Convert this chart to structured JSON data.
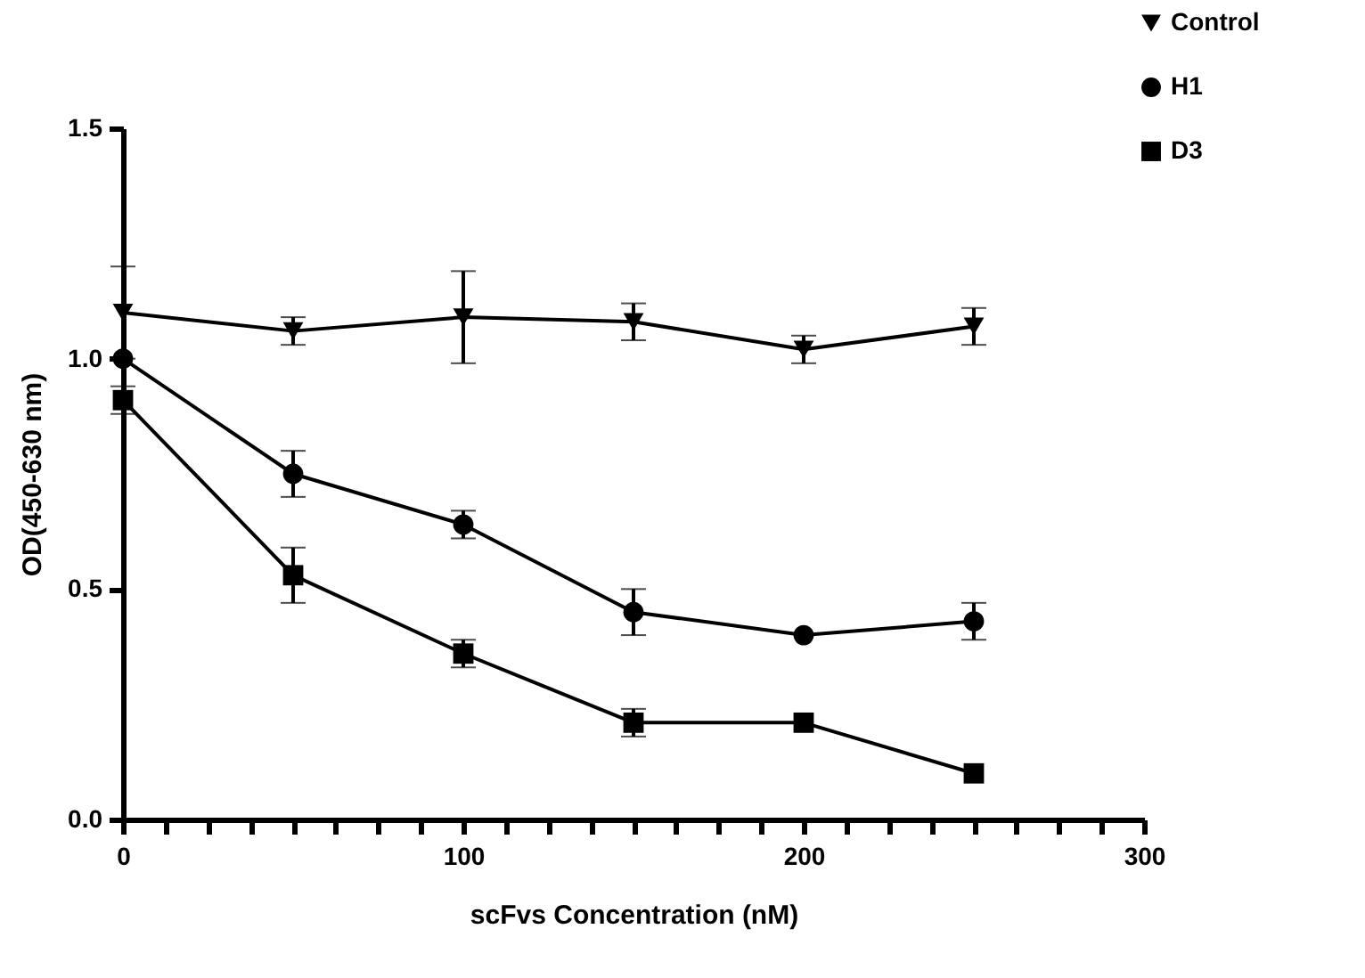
{
  "chart_data": {
    "type": "line",
    "xlabel": "scFvs Concentration (nM)",
    "ylabel": "OD(450-630 nm)",
    "x": [
      0,
      50,
      100,
      150,
      200,
      250
    ],
    "series": [
      {
        "name": "Control",
        "color": "#000000",
        "marker": "triangle-down",
        "values": [
          1.1,
          1.06,
          1.09,
          1.08,
          1.02,
          1.07
        ],
        "errors": [
          0.1,
          0.03,
          0.1,
          0.04,
          0.03,
          0.04
        ]
      },
      {
        "name": "H1",
        "color": "#000000",
        "marker": "circle",
        "values": [
          1.0,
          0.75,
          0.64,
          0.45,
          0.4,
          0.43
        ],
        "errors": [
          null,
          0.05,
          0.03,
          0.05,
          null,
          0.04
        ]
      },
      {
        "name": "D3",
        "color": "#000000",
        "marker": "square",
        "values": [
          0.91,
          0.53,
          0.36,
          0.21,
          0.21,
          0.1
        ],
        "errors": [
          0.03,
          0.06,
          0.03,
          0.03,
          null,
          null
        ]
      }
    ],
    "xlim": [
      0,
      300
    ],
    "xticks": [
      0,
      {
        "value": 12.5,
        "label": null
      },
      {
        "value": 25,
        "label": null
      },
      {
        "value": 37.5,
        "label": null
      },
      {
        "value": 50,
        "label": null
      },
      {
        "value": 62.5,
        "label": null
      },
      {
        "value": 75,
        "label": null
      },
      {
        "value": 87.5,
        "label": null
      },
      100,
      {
        "value": 112.5,
        "label": null
      },
      {
        "value": 125,
        "label": null
      },
      {
        "value": 137.5,
        "label": null
      },
      {
        "value": 150,
        "label": null
      },
      {
        "value": 162.5,
        "label": null
      },
      {
        "value": 175,
        "label": null
      },
      {
        "value": 187.5,
        "label": null
      },
      200,
      {
        "value": 212.5,
        "label": null
      },
      {
        "value": 225,
        "label": null
      },
      {
        "value": 237.5,
        "label": null
      },
      {
        "value": 250,
        "label": null
      },
      {
        "value": 262.5,
        "label": null
      },
      {
        "value": 275,
        "label": null
      },
      {
        "value": 287.5,
        "label": null
      },
      300
    ],
    "ylim": [
      0,
      1.5
    ],
    "yticks": [
      {
        "value": 0,
        "label": "0.0"
      },
      {
        "value": 0.5,
        "label": "0.5"
      },
      {
        "value": 1,
        "label": "1.0"
      },
      {
        "value": 1.5,
        "label": "1.5"
      }
    ],
    "legend": "top right",
    "line_style": "solid"
  }
}
